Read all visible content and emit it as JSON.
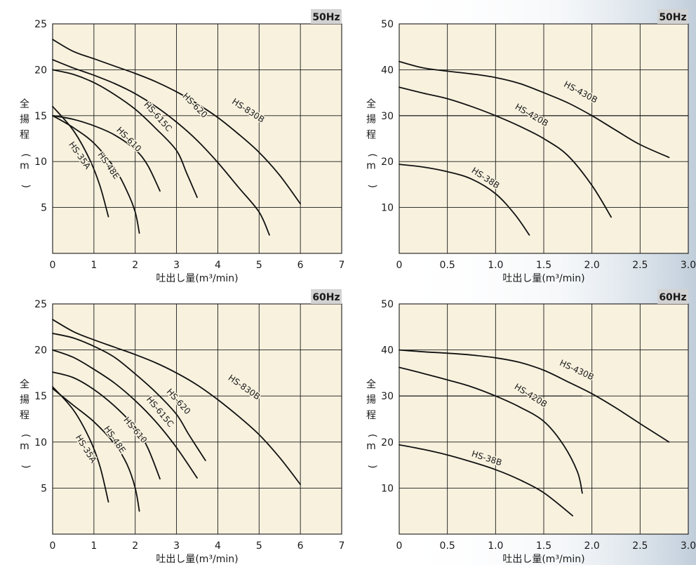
{
  "chart_data": [
    {
      "type": "line",
      "badge": "50Hz",
      "xlabel": "吐出し量(m³/min)",
      "ylabel": "全揚程(m)",
      "xlim": [
        0,
        7
      ],
      "ylim": [
        0,
        25
      ],
      "x_ticks": [
        0,
        1,
        2,
        3,
        4,
        5,
        6,
        7
      ],
      "y_ticks": [
        5,
        10,
        15,
        20,
        25
      ],
      "x_tick_labels": [
        "0",
        "1",
        "2",
        "3",
        "4",
        "5",
        "6",
        "7"
      ],
      "y_tick_labels": [
        "5",
        "10",
        "15",
        "20",
        "25"
      ],
      "grid": true,
      "series": [
        {
          "name": "HS-830B",
          "points": [
            [
              0,
              23.3
            ],
            [
              0.5,
              22.0
            ],
            [
              1,
              21.2
            ],
            [
              1.5,
              20.4
            ],
            [
              2,
              19.6
            ],
            [
              2.5,
              18.7
            ],
            [
              3,
              17.6
            ],
            [
              3.5,
              16.3
            ],
            [
              4,
              14.8
            ],
            [
              4.5,
              13.0
            ],
            [
              5,
              11.0
            ],
            [
              5.5,
              8.5
            ],
            [
              6,
              5.4
            ]
          ]
        },
        {
          "name": "HS-620",
          "points": [
            [
              0,
              21.1
            ],
            [
              0.5,
              20.2
            ],
            [
              1,
              19.4
            ],
            [
              1.5,
              18.5
            ],
            [
              2,
              17.4
            ],
            [
              2.5,
              16.0
            ],
            [
              3,
              14.3
            ],
            [
              3.5,
              12.3
            ],
            [
              4,
              9.9
            ],
            [
              4.5,
              7.2
            ],
            [
              5,
              4.5
            ],
            [
              5.25,
              2.0
            ]
          ]
        },
        {
          "name": "HS-615C",
          "points": [
            [
              0,
              20.0
            ],
            [
              0.5,
              19.5
            ],
            [
              1,
              18.6
            ],
            [
              1.5,
              17.3
            ],
            [
              2,
              15.7
            ],
            [
              2.5,
              13.6
            ],
            [
              3,
              11.2
            ],
            [
              3.25,
              8.7
            ],
            [
              3.5,
              6.1
            ]
          ]
        },
        {
          "name": "HS-610",
          "points": [
            [
              0,
              15.0
            ],
            [
              0.5,
              14.6
            ],
            [
              1,
              13.9
            ],
            [
              1.5,
              12.9
            ],
            [
              2,
              11.3
            ],
            [
              2.3,
              9.6
            ],
            [
              2.6,
              6.8
            ]
          ]
        },
        {
          "name": "HS-48E",
          "points": [
            [
              0,
              15.0
            ],
            [
              0.5,
              13.7
            ],
            [
              1,
              12.0
            ],
            [
              1.5,
              9.3
            ],
            [
              1.8,
              6.8
            ],
            [
              2.0,
              4.5
            ],
            [
              2.1,
              2.2
            ]
          ]
        },
        {
          "name": "HS-35A",
          "points": [
            [
              0,
              16.0
            ],
            [
              0.5,
              13.4
            ],
            [
              0.9,
              10.2
            ],
            [
              1.15,
              7.3
            ],
            [
              1.35,
              4.0
            ]
          ]
        }
      ]
    },
    {
      "type": "line",
      "badge": "50Hz",
      "xlabel": "吐出し量(m³/min)",
      "ylabel": "全揚程(m)",
      "xlim": [
        0,
        3.0
      ],
      "ylim": [
        0,
        50
      ],
      "x_ticks": [
        0,
        0.5,
        1.0,
        1.5,
        2.0,
        2.5,
        3.0
      ],
      "y_ticks": [
        10,
        20,
        30,
        40,
        50
      ],
      "x_tick_labels": [
        "0",
        "0.5",
        "1.0",
        "1.5",
        "2.0",
        "2.5",
        "3.0"
      ],
      "y_tick_labels": [
        "10",
        "20",
        "30",
        "40",
        "50"
      ],
      "grid": true,
      "reference_line": {
        "y": 30,
        "x_from": 0,
        "x_to": 3.0
      },
      "series": [
        {
          "name": "HS-430B",
          "points": [
            [
              0,
              41.8
            ],
            [
              0.25,
              40.4
            ],
            [
              0.5,
              39.7
            ],
            [
              0.75,
              39.1
            ],
            [
              1.0,
              38.3
            ],
            [
              1.25,
              37.0
            ],
            [
              1.5,
              35.0
            ],
            [
              1.75,
              32.8
            ],
            [
              2.0,
              30.0
            ],
            [
              2.25,
              26.8
            ],
            [
              2.5,
              23.7
            ],
            [
              2.8,
              20.9
            ]
          ]
        },
        {
          "name": "HS-420B",
          "points": [
            [
              0,
              36.2
            ],
            [
              0.25,
              34.9
            ],
            [
              0.5,
              33.7
            ],
            [
              0.75,
              32.0
            ],
            [
              1.0,
              30.0
            ],
            [
              1.25,
              27.7
            ],
            [
              1.5,
              25.0
            ],
            [
              1.75,
              21.3
            ],
            [
              2.0,
              14.8
            ],
            [
              2.2,
              7.9
            ]
          ]
        },
        {
          "name": "HS-38B",
          "points": [
            [
              0,
              19.4
            ],
            [
              0.25,
              18.8
            ],
            [
              0.5,
              17.8
            ],
            [
              0.75,
              16.2
            ],
            [
              1.0,
              13.0
            ],
            [
              1.2,
              8.5
            ],
            [
              1.35,
              4.0
            ]
          ]
        }
      ]
    },
    {
      "type": "line",
      "badge": "60Hz",
      "xlabel": "吐出し量(m³/min)",
      "ylabel": "全揚程(m)",
      "xlim": [
        0,
        7
      ],
      "ylim": [
        0,
        25
      ],
      "x_ticks": [
        0,
        1,
        2,
        3,
        4,
        5,
        6,
        7
      ],
      "y_ticks": [
        5,
        10,
        15,
        20,
        25
      ],
      "x_tick_labels": [
        "0",
        "1",
        "2",
        "3",
        "4",
        "5",
        "6",
        "7"
      ],
      "y_tick_labels": [
        "5",
        "10",
        "15",
        "20",
        "25"
      ],
      "grid": true,
      "series": [
        {
          "name": "HS-830B",
          "points": [
            [
              0,
              23.3
            ],
            [
              0.5,
              22.0
            ],
            [
              1,
              21.1
            ],
            [
              1.5,
              20.3
            ],
            [
              2,
              19.5
            ],
            [
              2.5,
              18.6
            ],
            [
              3,
              17.5
            ],
            [
              3.5,
              16.2
            ],
            [
              4,
              14.6
            ],
            [
              4.5,
              12.8
            ],
            [
              5,
              10.8
            ],
            [
              5.5,
              8.3
            ],
            [
              6,
              5.4
            ]
          ]
        },
        {
          "name": "HS-620",
          "points": [
            [
              0,
              21.8
            ],
            [
              0.5,
              21.3
            ],
            [
              1,
              20.4
            ],
            [
              1.5,
              19.2
            ],
            [
              2,
              17.4
            ],
            [
              2.5,
              15.4
            ],
            [
              3,
              13.0
            ],
            [
              3.3,
              10.8
            ],
            [
              3.7,
              8.0
            ]
          ]
        },
        {
          "name": "HS-615C",
          "points": [
            [
              0,
              20.0
            ],
            [
              0.5,
              19.2
            ],
            [
              1,
              17.9
            ],
            [
              1.5,
              16.4
            ],
            [
              2,
              14.5
            ],
            [
              2.5,
              12.2
            ],
            [
              3,
              9.4
            ],
            [
              3.5,
              6.1
            ]
          ]
        },
        {
          "name": "HS-610",
          "points": [
            [
              0,
              17.6
            ],
            [
              0.5,
              17.0
            ],
            [
              1,
              15.7
            ],
            [
              1.5,
              13.9
            ],
            [
              2,
              11.6
            ],
            [
              2.3,
              9.4
            ],
            [
              2.6,
              6.0
            ]
          ]
        },
        {
          "name": "HS-48E",
          "points": [
            [
              0,
              15.8
            ],
            [
              0.5,
              14.0
            ],
            [
              1,
              12.2
            ],
            [
              1.5,
              9.8
            ],
            [
              1.8,
              7.6
            ],
            [
              2.0,
              5.0
            ],
            [
              2.1,
              2.5
            ]
          ]
        },
        {
          "name": "HS-35A",
          "points": [
            [
              0,
              16.0
            ],
            [
              0.5,
              13.5
            ],
            [
              0.9,
              10.3
            ],
            [
              1.15,
              7.3
            ],
            [
              1.35,
              3.5
            ]
          ]
        }
      ]
    },
    {
      "type": "line",
      "badge": "60Hz",
      "xlabel": "吐出し量(m³/min)",
      "ylabel": "全揚程(m)",
      "xlim": [
        0,
        3.0
      ],
      "ylim": [
        0,
        50
      ],
      "x_ticks": [
        0,
        0.5,
        1.0,
        1.5,
        2.0,
        2.5,
        3.0
      ],
      "y_ticks": [
        10,
        20,
        30,
        40,
        50
      ],
      "x_tick_labels": [
        "0",
        "0.5",
        "1.0",
        "1.5",
        "2.0",
        "2.5",
        "3.0"
      ],
      "y_tick_labels": [
        "10",
        "20",
        "30",
        "40",
        "50"
      ],
      "grid": true,
      "reference_line": {
        "y": 30,
        "x_from": 0,
        "x_to": 1.9
      },
      "series": [
        {
          "name": "HS-430B",
          "points": [
            [
              0,
              40.0
            ],
            [
              0.25,
              39.6
            ],
            [
              0.5,
              39.3
            ],
            [
              0.75,
              38.9
            ],
            [
              1.0,
              38.3
            ],
            [
              1.25,
              37.3
            ],
            [
              1.5,
              35.6
            ],
            [
              1.75,
              33.1
            ],
            [
              2.0,
              30.5
            ],
            [
              2.25,
              27.4
            ],
            [
              2.5,
              24.0
            ],
            [
              2.8,
              20.0
            ]
          ]
        },
        {
          "name": "HS-420B",
          "points": [
            [
              0,
              36.2
            ],
            [
              0.25,
              34.9
            ],
            [
              0.5,
              33.5
            ],
            [
              0.75,
              32.0
            ],
            [
              1.0,
              30.0
            ],
            [
              1.25,
              27.6
            ],
            [
              1.5,
              24.5
            ],
            [
              1.7,
              19.5
            ],
            [
              1.85,
              13.5
            ],
            [
              1.9,
              8.9
            ]
          ]
        },
        {
          "name": "HS-38B",
          "points": [
            [
              0,
              19.4
            ],
            [
              0.25,
              18.4
            ],
            [
              0.5,
              17.2
            ],
            [
              0.75,
              15.7
            ],
            [
              1.0,
              14.0
            ],
            [
              1.25,
              11.8
            ],
            [
              1.5,
              9.0
            ],
            [
              1.8,
              4.0
            ]
          ]
        }
      ]
    }
  ]
}
